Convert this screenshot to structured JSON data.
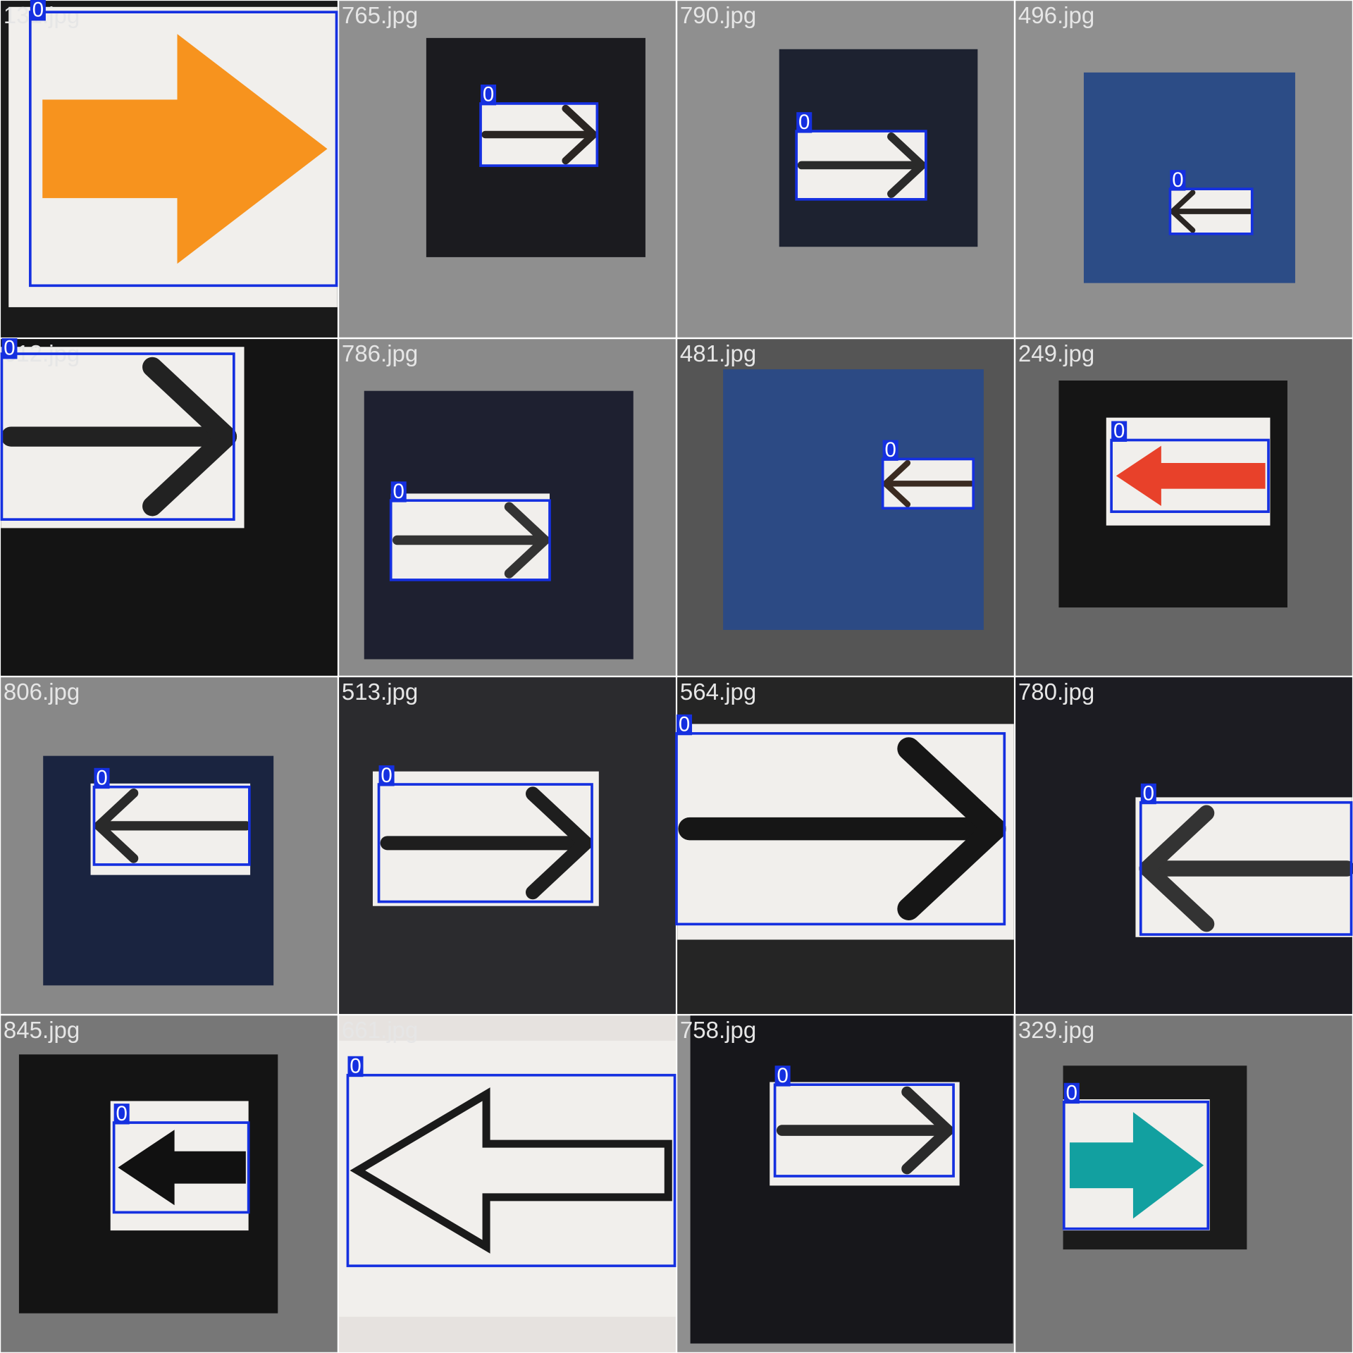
{
  "tiles": [
    {
      "file": "131.jpg",
      "boxes": [
        {
          "label": "0"
        }
      ]
    },
    {
      "file": "765.jpg",
      "boxes": [
        {
          "label": "0"
        }
      ]
    },
    {
      "file": "790.jpg",
      "boxes": [
        {
          "label": "0"
        }
      ]
    },
    {
      "file": "496.jpg",
      "boxes": [
        {
          "label": "0"
        }
      ]
    },
    {
      "file": "612.jpg",
      "boxes": [
        {
          "label": "0"
        }
      ]
    },
    {
      "file": "786.jpg",
      "boxes": [
        {
          "label": "0"
        }
      ]
    },
    {
      "file": "481.jpg",
      "boxes": [
        {
          "label": "0"
        }
      ]
    },
    {
      "file": "249.jpg",
      "boxes": [
        {
          "label": "0"
        }
      ]
    },
    {
      "file": "806.jpg",
      "boxes": [
        {
          "label": "0"
        }
      ]
    },
    {
      "file": "513.jpg",
      "boxes": [
        {
          "label": "0"
        }
      ]
    },
    {
      "file": "564.jpg",
      "boxes": [
        {
          "label": "0"
        }
      ]
    },
    {
      "file": "780.jpg",
      "boxes": [
        {
          "label": "0"
        }
      ]
    },
    {
      "file": "845.jpg",
      "boxes": [
        {
          "label": "0"
        }
      ]
    },
    {
      "file": "661.jpg",
      "boxes": [
        {
          "label": "0"
        }
      ]
    },
    {
      "file": "758.jpg",
      "boxes": [
        {
          "label": "0"
        }
      ]
    },
    {
      "file": "329.jpg",
      "boxes": [
        {
          "label": "0"
        }
      ]
    }
  ]
}
